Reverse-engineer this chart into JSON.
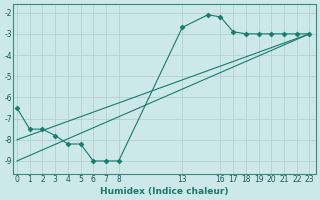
{
  "line1_x": [
    0,
    1,
    2,
    3,
    4,
    5,
    6,
    7,
    8,
    13,
    15,
    16,
    17,
    18,
    19,
    20,
    21,
    22,
    23
  ],
  "line1_y": [
    -6.5,
    -7.5,
    -7.5,
    -7.8,
    -8.2,
    -8.2,
    -9.0,
    -9.0,
    -9.0,
    -2.7,
    -2.1,
    -2.2,
    -2.9,
    -3.0,
    -3.0,
    -3.0,
    -3.0,
    -3.0,
    -3.0
  ],
  "line2_x": [
    0,
    23
  ],
  "line2_y": [
    -9.0,
    -3.0
  ],
  "line3_x": [
    0,
    23
  ],
  "line3_y": [
    -8.0,
    -3.0
  ],
  "line_color": "#1a7a6e",
  "marker": "D",
  "marker_size": 2.5,
  "xlabel": "Humidex (Indice chaleur)",
  "xticks": [
    0,
    1,
    2,
    3,
    4,
    5,
    6,
    7,
    8,
    13,
    16,
    17,
    18,
    19,
    20,
    21,
    22,
    23
  ],
  "yticks": [
    -2,
    -3,
    -4,
    -5,
    -6,
    -7,
    -8,
    -9
  ],
  "ylim": [
    -9.6,
    -1.6
  ],
  "xlim": [
    -0.3,
    23.5
  ],
  "bg_color": "#cce8e8",
  "grid_color": "#b0cccc",
  "title": ""
}
